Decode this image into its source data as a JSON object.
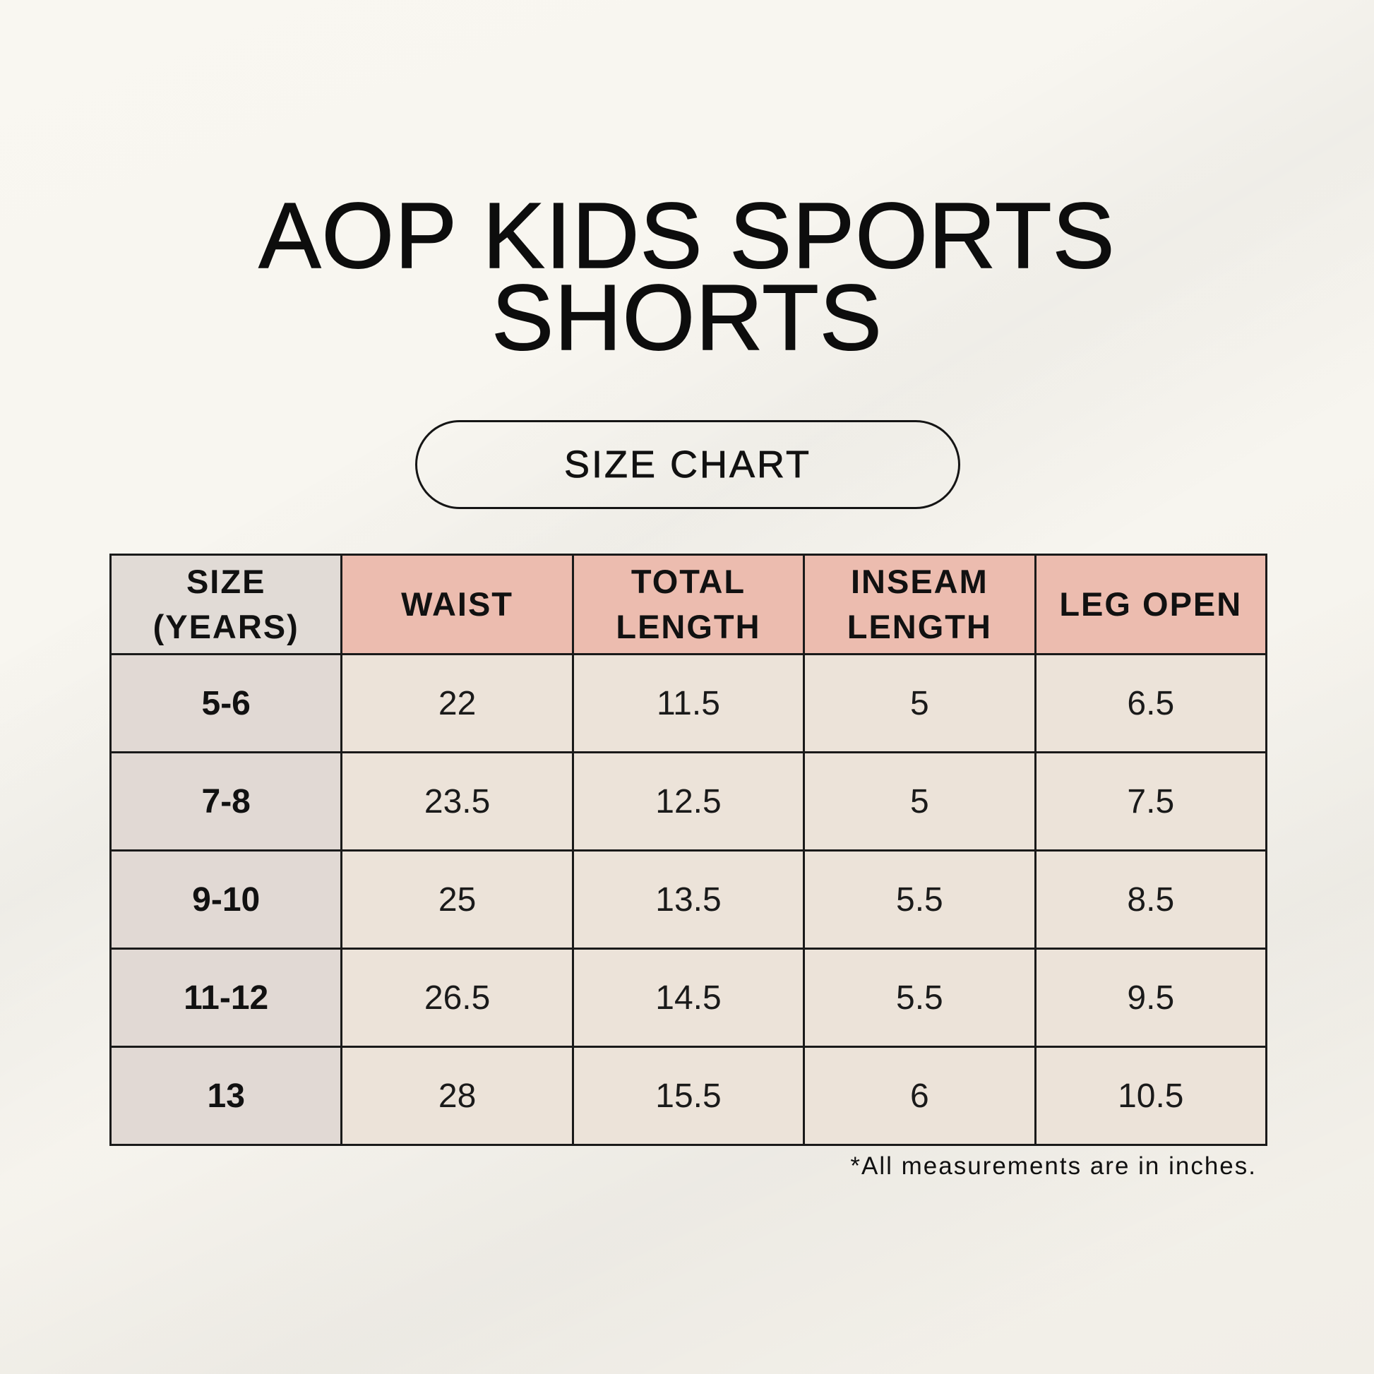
{
  "title": {
    "line1": "AOP KIDS SPORTS",
    "line2": "SHORTS"
  },
  "badge": {
    "label": "SIZE CHART"
  },
  "table": {
    "headers": [
      [
        "SIZE",
        "(YEARS)"
      ],
      [
        "WAIST",
        ""
      ],
      [
        "TOTAL",
        "LENGTH"
      ],
      [
        "INSEAM",
        "LENGTH"
      ],
      [
        "LEG OPEN",
        ""
      ]
    ],
    "rows": [
      [
        "5-6",
        "22",
        "11.5",
        "5",
        "6.5"
      ],
      [
        "7-8",
        "23.5",
        "12.5",
        "5",
        "7.5"
      ],
      [
        "9-10",
        "25",
        "13.5",
        "5.5",
        "8.5"
      ],
      [
        "11-12",
        "26.5",
        "14.5",
        "5.5",
        "9.5"
      ],
      [
        "13",
        "28",
        "15.5",
        "6",
        "10.5"
      ]
    ]
  },
  "footnote": "*All measurements are in inches.",
  "colors": {
    "background": "#f8f6f0",
    "header_accent": "#ecbcaf",
    "size_column": "#e1d9d4",
    "cell": "#ece3d9",
    "border": "#1a1a1a"
  }
}
